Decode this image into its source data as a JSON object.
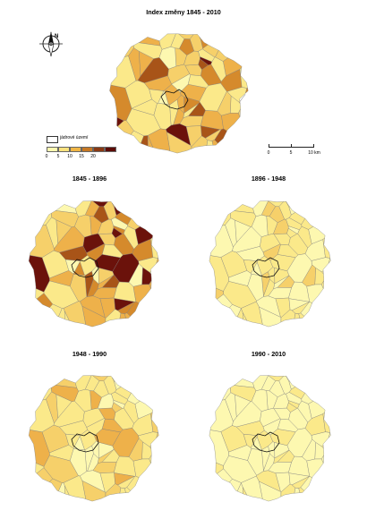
{
  "main_title": "Index změny 1845 - 2010",
  "panel_titles": [
    "1845 - 1896",
    "1896 - 1948",
    "1948 - 1990",
    "1990 - 2010"
  ],
  "legend": {
    "core_label": "jádrové území",
    "tick_labels": [
      "0",
      "5",
      "10",
      "15",
      "20"
    ],
    "ramp_colors": [
      "#fdf8b0",
      "#fbe27e",
      "#f0b646",
      "#c77924",
      "#8a3a14",
      "#5c0b05"
    ]
  },
  "scale_bar": {
    "labels": [
      "0",
      "5",
      "10 km"
    ]
  },
  "north_arrow": {
    "label": "N",
    "icon": "compass-north-arrow-icon"
  },
  "colors": {
    "c0": "#fdf8b0",
    "c1": "#fbe98a",
    "c2": "#f6d06a",
    "c3": "#eeb14a",
    "c4": "#d58a2c",
    "c5": "#a85418",
    "c6": "#6b120b"
  },
  "map_class_weights": {
    "main": [
      1,
      5,
      5,
      5,
      3,
      1,
      1
    ],
    "p1": [
      1,
      5,
      5,
      5,
      2,
      1,
      1
    ],
    "p2": [
      4,
      5,
      1,
      0,
      0,
      0,
      0
    ],
    "p3": [
      2,
      6,
      4,
      1,
      0,
      0,
      0
    ],
    "p4": [
      8,
      2,
      0,
      0,
      0,
      0,
      0
    ]
  }
}
